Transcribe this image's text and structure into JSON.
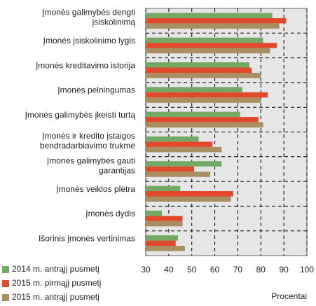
{
  "chart_data": {
    "type": "bar",
    "orientation": "horizontal",
    "categories": [
      "Įmonės galimybės dengti\nįsiskolinimą",
      "Įmonės įsiskolinimo lygis",
      "Įmonės kreditavimo istorija",
      "Įmonės pelningumas",
      "Įmonės galimybės įkeisti turtą",
      "Įmonės ir kredito įstaigos\nbendradarbiavimo trukmė",
      "Įmonės galimybės gauti\ngarantijas",
      "Įmonės veiklos plėtra",
      "Įmonės dydis",
      "Išorinis įmonės vertinimas"
    ],
    "series": [
      {
        "name": "2014 m. antrąjį pusmetį",
        "color": "#74a865",
        "values": [
          85,
          81,
          75,
          72,
          71,
          53,
          63,
          45,
          37,
          44
        ]
      },
      {
        "name": "2015 m. pirmąjį pusmetį",
        "color": "#e2492b",
        "values": [
          91,
          87,
          76,
          83,
          79,
          59,
          51,
          68,
          46,
          43
        ]
      },
      {
        "name": "2015 m. antrąjį pusmetį",
        "color": "#a88e60",
        "values": [
          88,
          84,
          80,
          80,
          81,
          63,
          58,
          67,
          46,
          47
        ]
      }
    ],
    "xlim": [
      30,
      100
    ],
    "xticks": [
      30,
      40,
      50,
      60,
      70,
      80,
      90,
      100
    ],
    "xlabel": "Procentai",
    "grid": true,
    "legend": "bottom-left"
  }
}
